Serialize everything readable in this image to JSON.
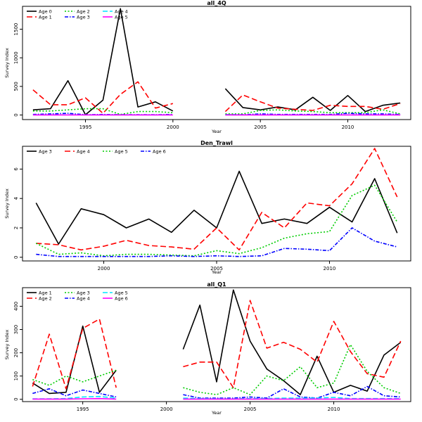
{
  "chart_data": [
    {
      "type": "line",
      "title": "all_4Q",
      "xlabel": "Year",
      "ylabel": "Survey Index",
      "xlim": [
        1991.4,
        2013.6
      ],
      "ylim": [
        -80,
        1900
      ],
      "xticks": [
        1995,
        2000,
        2005,
        2010
      ],
      "yticks": [
        0,
        500,
        1000,
        1500
      ],
      "x": [
        1992,
        1993,
        1994,
        1995,
        1996,
        1997,
        1998,
        1999,
        2000,
        2001,
        2002,
        2003,
        2004,
        2005,
        2006,
        2007,
        2008,
        2009,
        2010,
        2011,
        2012,
        2013
      ],
      "series": [
        {
          "name": "Age 0",
          "color": "#000000",
          "dash": "",
          "values": [
            90,
            110,
            600,
            5,
            260,
            1860,
            140,
            230,
            70,
            null,
            null,
            460,
            130,
            90,
            140,
            90,
            310,
            80,
            340,
            60,
            170,
            210
          ]
        },
        {
          "name": "Age 1",
          "color": "#ff0000",
          "dash": "8,4",
          "values": [
            440,
            180,
            180,
            300,
            30,
            360,
            580,
            120,
            200,
            null,
            null,
            60,
            350,
            230,
            120,
            100,
            80,
            170,
            150,
            150,
            100,
            200
          ]
        },
        {
          "name": "Age 2",
          "color": "#00cc00",
          "dash": "2,2.5",
          "values": [
            70,
            70,
            90,
            110,
            110,
            10,
            60,
            60,
            40,
            null,
            null,
            20,
            20,
            80,
            90,
            70,
            60,
            40,
            40,
            40,
            90,
            20
          ]
        },
        {
          "name": "Age 3",
          "color": "#0000ff",
          "dash": "5,2,1.5,2",
          "values": [
            10,
            20,
            30,
            5,
            10,
            5,
            5,
            5,
            10,
            null,
            null,
            5,
            5,
            20,
            10,
            10,
            10,
            10,
            30,
            20,
            20,
            10
          ]
        },
        {
          "name": "Age 4",
          "color": "#00e5ff",
          "dash": "7,3",
          "values": [
            2,
            3,
            4,
            2,
            2,
            2,
            2,
            2,
            2,
            null,
            null,
            1,
            2,
            2,
            3,
            2,
            3,
            3,
            3,
            3,
            3,
            2
          ]
        },
        {
          "name": "Age 5",
          "color": "#ff00ff",
          "dash": "",
          "values": [
            1,
            1,
            1,
            1,
            1,
            1,
            1,
            1,
            1,
            null,
            null,
            0,
            1,
            1,
            1,
            1,
            1,
            1,
            1,
            1,
            1,
            1
          ]
        }
      ]
    },
    {
      "type": "line",
      "title": "Den_Trawl",
      "xlabel": "Year",
      "ylabel": "Survey Index",
      "xlim": [
        1996.4,
        2013.6
      ],
      "ylim": [
        -0.25,
        7.55
      ],
      "xticks": [
        2000,
        2005,
        2010
      ],
      "yticks": [
        0,
        2,
        4,
        6
      ],
      "x": [
        1997,
        1998,
        1999,
        2000,
        2001,
        2002,
        2003,
        2004,
        2005,
        2006,
        2007,
        2008,
        2009,
        2010,
        2011,
        2012,
        2013
      ],
      "series": [
        {
          "name": "Age 3",
          "color": "#000000",
          "dash": "",
          "values": [
            3.7,
            0.9,
            3.3,
            2.9,
            2.0,
            2.6,
            1.7,
            3.2,
            2.0,
            5.85,
            2.3,
            2.6,
            2.3,
            3.4,
            2.4,
            5.35,
            1.65
          ]
        },
        {
          "name": "Age 4",
          "color": "#ff0000",
          "dash": "8,4",
          "values": [
            0.95,
            0.85,
            0.5,
            0.75,
            1.15,
            0.8,
            0.7,
            0.55,
            2.0,
            0.5,
            3.05,
            2.0,
            3.7,
            3.5,
            5.0,
            7.4,
            4.1
          ]
        },
        {
          "name": "Age 5",
          "color": "#00cc00",
          "dash": "2,2.5",
          "values": [
            0.95,
            0.2,
            0.3,
            0.1,
            0.2,
            0.2,
            0.15,
            0.1,
            0.45,
            0.25,
            0.65,
            1.3,
            1.6,
            1.75,
            4.2,
            4.9,
            2.4
          ]
        },
        {
          "name": "Age 6",
          "color": "#0000ff",
          "dash": "5,2,1.5,2",
          "values": [
            0.2,
            0.05,
            0.05,
            0.05,
            0.05,
            0.05,
            0.1,
            0.05,
            0.1,
            0.05,
            0.1,
            0.6,
            0.55,
            0.45,
            2.0,
            1.1,
            0.7
          ]
        }
      ]
    },
    {
      "type": "line",
      "title": "all_Q1",
      "xlabel": "Year",
      "ylabel": "Survey Index",
      "xlim": [
        1991.4,
        2014.6
      ],
      "ylim": [
        -10,
        480
      ],
      "xticks": [
        1995,
        2000,
        2005,
        2010
      ],
      "yticks": [
        0,
        100,
        200,
        300,
        400
      ],
      "x": [
        1992,
        1993,
        1994,
        1995,
        1996,
        1997,
        1998,
        1999,
        2000,
        2001,
        2002,
        2003,
        2004,
        2005,
        2006,
        2007,
        2008,
        2009,
        2010,
        2011,
        2012,
        2013,
        2014
      ],
      "series": [
        {
          "name": "Age 1",
          "color": "#000000",
          "dash": "",
          "values": [
            70,
            25,
            30,
            315,
            30,
            125,
            null,
            null,
            null,
            215,
            405,
            75,
            470,
            250,
            130,
            80,
            20,
            185,
            30,
            60,
            35,
            190,
            245
          ]
        },
        {
          "name": "Age 2",
          "color": "#ff0000",
          "dash": "8,4",
          "values": [
            55,
            280,
            45,
            305,
            345,
            50,
            null,
            null,
            null,
            140,
            160,
            160,
            50,
            425,
            220,
            245,
            215,
            160,
            335,
            205,
            110,
            95,
            250
          ]
        },
        {
          "name": "Age 3",
          "color": "#00cc00",
          "dash": "2,2.5",
          "values": [
            85,
            60,
            100,
            75,
            100,
            125,
            null,
            null,
            null,
            50,
            30,
            20,
            50,
            20,
            100,
            80,
            140,
            50,
            70,
            235,
            120,
            50,
            25
          ]
        },
        {
          "name": "Age 4",
          "color": "#0000ff",
          "dash": "5,2,1.5,2",
          "values": [
            25,
            45,
            15,
            40,
            25,
            10,
            null,
            null,
            null,
            20,
            5,
            5,
            5,
            10,
            5,
            45,
            10,
            5,
            30,
            15,
            55,
            15,
            10
          ]
        },
        {
          "name": "Age 5",
          "color": "#00e5ff",
          "dash": "7,3",
          "values": [
            2,
            2,
            3,
            10,
            12,
            5,
            null,
            null,
            null,
            5,
            3,
            2,
            2,
            3,
            3,
            5,
            5,
            5,
            8,
            3,
            3,
            3,
            3
          ]
        },
        {
          "name": "Age 6",
          "color": "#ff00ff",
          "dash": "",
          "values": [
            1,
            1,
            1,
            2,
            3,
            1,
            null,
            null,
            null,
            1,
            1,
            1,
            1,
            1,
            1,
            1,
            1,
            1,
            1,
            1,
            1,
            1,
            1
          ]
        }
      ]
    }
  ]
}
